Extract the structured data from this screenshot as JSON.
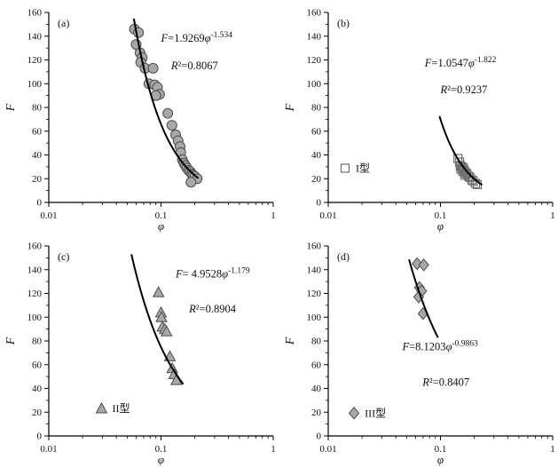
{
  "figure": {
    "description": "Four-panel scatter plot figure of F versus porosity φ with power-law fits",
    "x_axis_label": "φ",
    "y_axis_label": "F"
  },
  "chart_data": [
    {
      "panel_label": "(a)",
      "type": "scatter",
      "marker": "circle",
      "xlabel": "φ",
      "ylabel": "F",
      "xscale": "log",
      "xlim": [
        0.01,
        1
      ],
      "ylim": [
        0,
        160
      ],
      "ytick_step": 20,
      "xticks": [
        "0.01",
        "0.1",
        "1"
      ],
      "equation": {
        "lhs": "F",
        "coef": "=1.9269",
        "var": "φ",
        "exp": "-1.534"
      },
      "r2_lhs": "R",
      "r2_value": "²=0.8067",
      "fit": {
        "A": 1.9269,
        "B": -1.534,
        "phi_range": [
          0.0573,
          0.215
        ]
      },
      "eq_pos": [
        0.5,
        0.155
      ],
      "r2_pos": [
        0.545,
        0.3
      ],
      "legend": null,
      "points": [
        [
          0.058,
          146
        ],
        [
          0.063,
          143
        ],
        [
          0.06,
          133
        ],
        [
          0.065,
          126
        ],
        [
          0.068,
          122
        ],
        [
          0.066,
          118
        ],
        [
          0.072,
          113
        ],
        [
          0.085,
          113
        ],
        [
          0.078,
          100
        ],
        [
          0.088,
          99
        ],
        [
          0.093,
          97
        ],
        [
          0.097,
          91
        ],
        [
          0.09,
          90
        ],
        [
          0.115,
          75
        ],
        [
          0.125,
          65
        ],
        [
          0.135,
          57
        ],
        [
          0.142,
          52
        ],
        [
          0.148,
          47
        ],
        [
          0.15,
          42
        ],
        [
          0.155,
          36
        ],
        [
          0.16,
          33
        ],
        [
          0.165,
          31
        ],
        [
          0.17,
          29
        ],
        [
          0.176,
          27
        ],
        [
          0.182,
          26
        ],
        [
          0.188,
          24
        ],
        [
          0.193,
          23
        ],
        [
          0.2,
          22
        ],
        [
          0.21,
          20
        ],
        [
          0.185,
          17
        ]
      ]
    },
    {
      "panel_label": "(b)",
      "type": "scatter",
      "marker": "square-open",
      "xlabel": "φ",
      "ylabel": "F",
      "xscale": "log",
      "xlim": [
        0.01,
        1
      ],
      "ylim": [
        0,
        160
      ],
      "ytick_step": 20,
      "xticks": [
        "0.01",
        "0.1",
        "1"
      ],
      "equation": {
        "lhs": "F",
        "coef": "=1.0547",
        "var": "φ",
        "exp": "-1.822"
      },
      "r2_lhs": "R",
      "r2_value": "²=0.9237",
      "fit": {
        "A": 1.0547,
        "B": -1.822,
        "phi_range": [
          0.098,
          0.235
        ]
      },
      "eq_pos": [
        0.43,
        0.285
      ],
      "r2_pos": [
        0.5,
        0.425
      ],
      "legend": {
        "label": "I型",
        "pos": [
          0.075,
          0.82
        ]
      },
      "points": [
        [
          0.143,
          37
        ],
        [
          0.148,
          34
        ],
        [
          0.15,
          31
        ],
        [
          0.155,
          30
        ],
        [
          0.16,
          29
        ],
        [
          0.152,
          28
        ],
        [
          0.163,
          27
        ],
        [
          0.158,
          26
        ],
        [
          0.168,
          25
        ],
        [
          0.172,
          24
        ],
        [
          0.165,
          23
        ],
        [
          0.178,
          22
        ],
        [
          0.183,
          21
        ],
        [
          0.19,
          19
        ],
        [
          0.196,
          18
        ],
        [
          0.205,
          16
        ],
        [
          0.213,
          15
        ]
      ]
    },
    {
      "panel_label": "(c)",
      "type": "scatter",
      "marker": "triangle",
      "xlabel": "φ",
      "ylabel": "F",
      "xscale": "log",
      "xlim": [
        0.01,
        1
      ],
      "ylim": [
        0,
        160
      ],
      "ytick_step": 20,
      "xticks": [
        "0.01",
        "0.1",
        "1"
      ],
      "equation": {
        "lhs": "F",
        "coef": "= 4.9528",
        "var": "φ",
        "exp": "-1.179"
      },
      "r2_lhs": "R",
      "r2_value": "²=0.8904",
      "fit": {
        "A": 4.9528,
        "B": -1.179,
        "phi_range": [
          0.0545,
          0.158
        ]
      },
      "eq_pos": [
        0.565,
        0.165
      ],
      "r2_pos": [
        0.625,
        0.35
      ],
      "legend": {
        "label": "II型",
        "pos": [
          0.235,
          0.855
        ]
      },
      "points": [
        [
          0.095,
          121
        ],
        [
          0.1,
          104
        ],
        [
          0.101,
          100
        ],
        [
          0.103,
          92
        ],
        [
          0.108,
          90
        ],
        [
          0.112,
          88
        ],
        [
          0.12,
          67
        ],
        [
          0.126,
          57
        ],
        [
          0.131,
          52
        ],
        [
          0.137,
          47
        ]
      ]
    },
    {
      "panel_label": "(d)",
      "type": "scatter",
      "marker": "diamond",
      "xlabel": "φ",
      "ylabel": "F",
      "xscale": "log",
      "xlim": [
        0.01,
        1
      ],
      "ylim": [
        0,
        160
      ],
      "ytick_step": 20,
      "xticks": [
        "0.01",
        "0.1",
        "1"
      ],
      "equation": {
        "lhs": "F",
        "coef": "=8.1203",
        "var": "φ",
        "exp": "-0.9863"
      },
      "r2_lhs": "R",
      "r2_value": "²=0.8407",
      "fit": {
        "A": 8.1203,
        "B": -0.9863,
        "phi_range": [
          0.0525,
          0.095
        ]
      },
      "eq_pos": [
        0.33,
        0.55
      ],
      "r2_pos": [
        0.42,
        0.735
      ],
      "legend": {
        "label": "III型",
        "pos": [
          0.115,
          0.88
        ]
      },
      "points": [
        [
          0.062,
          145
        ],
        [
          0.071,
          144
        ],
        [
          0.065,
          125
        ],
        [
          0.068,
          122
        ],
        [
          0.064,
          117
        ],
        [
          0.07,
          103
        ]
      ]
    }
  ],
  "style_colors": {
    "marker_fill": "#a8a8a8",
    "marker_stroke": "#4d4d4d",
    "open_marker_stroke": "#6e6e6e",
    "curve": "#000000",
    "axis": "#000000"
  }
}
